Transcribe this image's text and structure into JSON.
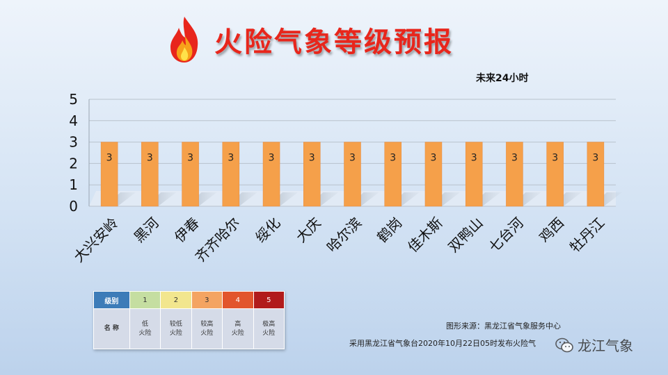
{
  "header": {
    "title": "火险气象等级预报",
    "subtitle": "未来24小时"
  },
  "chart_data": {
    "type": "bar",
    "categories": [
      "大兴安岭",
      "黑河",
      "伊春",
      "齐齐哈尔",
      "绥化",
      "大庆",
      "哈尔滨",
      "鹤岗",
      "佳木斯",
      "双鸭山",
      "七台河",
      "鸡西",
      "牡丹江"
    ],
    "values": [
      3,
      3,
      3,
      3,
      3,
      3,
      3,
      3,
      3,
      3,
      3,
      3,
      3
    ],
    "ylim": [
      0,
      5
    ],
    "yticks": [
      "0",
      "1",
      "2",
      "3",
      "4",
      "5"
    ],
    "grid": true,
    "bar_color": "#f5a04a",
    "data_labels": true
  },
  "legend": {
    "header_label": "级别",
    "row_label": "名 称",
    "levels": [
      {
        "level": "1",
        "line1": "低",
        "line2": "火险",
        "color": "#c5dea1"
      },
      {
        "level": "2",
        "line1": "较低",
        "line2": "火险",
        "color": "#f2e68e"
      },
      {
        "level": "3",
        "line1": "较高",
        "line2": "火险",
        "color": "#f4a462"
      },
      {
        "level": "4",
        "line1": "高",
        "line2": "火险",
        "color": "#e2552c"
      },
      {
        "level": "5",
        "line1": "极高",
        "line2": "火险",
        "color": "#b11b1b"
      }
    ],
    "header_color": "#3d7cb8"
  },
  "footer": {
    "source": "图形来源：黑龙江省气象服务中心",
    "publish": "采用黑龙江省气象台2020年10月22日05时发布火险气",
    "watermark": "龙江气象"
  }
}
